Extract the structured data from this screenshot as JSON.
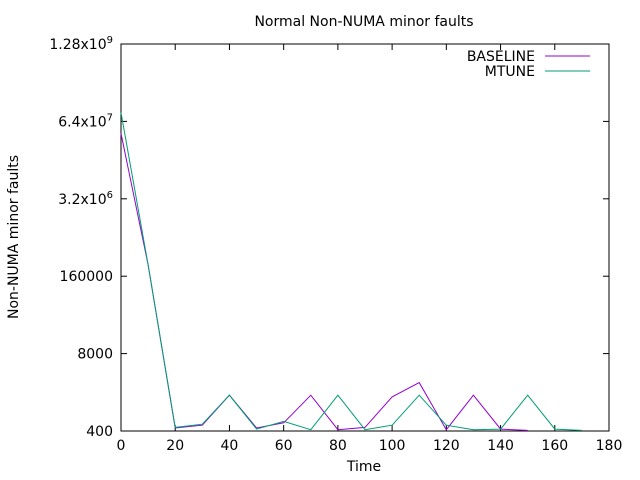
{
  "chart_data": {
    "type": "line",
    "title": "Normal Non-NUMA minor faults",
    "xlabel": "Time",
    "ylabel": "Non-NUMA minor faults",
    "xlim": [
      0,
      180
    ],
    "ylim": [
      400,
      1280000000
    ],
    "yscale": "log",
    "grid": false,
    "legend_position": "top-right",
    "x_ticks": [
      0,
      20,
      40,
      60,
      80,
      100,
      120,
      140,
      160,
      180
    ],
    "y_ticks": [
      {
        "value": 400,
        "label": "400"
      },
      {
        "value": 8000,
        "label": "8000"
      },
      {
        "value": 160000,
        "label": "160000"
      },
      {
        "value": 3200000,
        "label": "3.2x10",
        "exp": "6"
      },
      {
        "value": 64000000,
        "label": "6.4x10",
        "exp": "7"
      },
      {
        "value": 1280000000,
        "label": "1.28x10",
        "exp": "9"
      }
    ],
    "series": [
      {
        "name": "BASELINE",
        "color": "#9400d3",
        "points": [
          [
            0,
            40000000
          ],
          [
            10,
            250000
          ],
          [
            20,
            450
          ],
          [
            30,
            500
          ],
          [
            40,
            1600
          ],
          [
            50,
            450
          ],
          [
            60,
            550
          ],
          [
            70,
            1600
          ],
          [
            80,
            420
          ],
          [
            90,
            460
          ],
          [
            100,
            1500
          ],
          [
            110,
            2600
          ],
          [
            120,
            420
          ],
          [
            130,
            1600
          ],
          [
            140,
            430
          ],
          [
            150,
            410
          ]
        ]
      },
      {
        "name": "MTUNE",
        "color": "#009e73",
        "points": [
          [
            0,
            90000000
          ],
          [
            10,
            250000
          ],
          [
            20,
            460
          ],
          [
            30,
            520
          ],
          [
            40,
            1600
          ],
          [
            50,
            430
          ],
          [
            60,
            580
          ],
          [
            70,
            420
          ],
          [
            80,
            1600
          ],
          [
            90,
            420
          ],
          [
            100,
            500
          ],
          [
            110,
            1600
          ],
          [
            120,
            500
          ],
          [
            130,
            420
          ],
          [
            140,
            430
          ],
          [
            150,
            1600
          ],
          [
            160,
            430
          ],
          [
            170,
            410
          ]
        ]
      }
    ]
  }
}
